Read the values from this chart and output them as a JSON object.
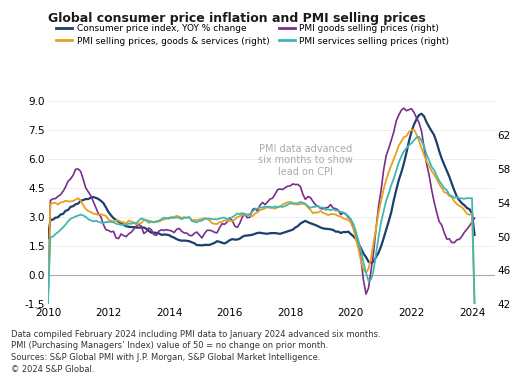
{
  "title": "Global consumer price inflation and PMI selling prices",
  "footnote1": "Data compiled February 2024 including PMI data to January 2024 advanced six months.",
  "footnote2": "PMI (Purchasing Managers’ Index) value of 50 = no change on prior month.",
  "footnote3": "Sources: S&P Global PMI with J.P. Morgan, S&P Global Market Intelligence.",
  "footnote4": "© 2024 S&P Global.",
  "annotation": "PMI data advanced\nsix months to show\nlead on CPI",
  "ylim_left": [
    -1.5,
    9.0
  ],
  "ylim_right": [
    42,
    66
  ],
  "yticks_left": [
    -1.5,
    0.0,
    1.5,
    3.0,
    4.5,
    6.0,
    7.5,
    9.0
  ],
  "yticks_right": [
    42,
    46,
    50,
    54,
    58,
    62
  ],
  "xlim": [
    2010.0,
    2024.75
  ],
  "xticks": [
    2010,
    2012,
    2014,
    2016,
    2018,
    2020,
    2022,
    2024
  ],
  "colors": {
    "cpi": "#1b3f6e",
    "pmi_composite": "#e8a020",
    "pmi_goods": "#7b2d8b",
    "pmi_services": "#40b8b0"
  },
  "bg_color": "#ffffff",
  "grid_color": "#e8e8e8",
  "zero_line_color": "#aaaaaa",
  "annotation_color": "#aaaaaa",
  "tick_label_size": 7.5,
  "footnote_size": 6.0
}
